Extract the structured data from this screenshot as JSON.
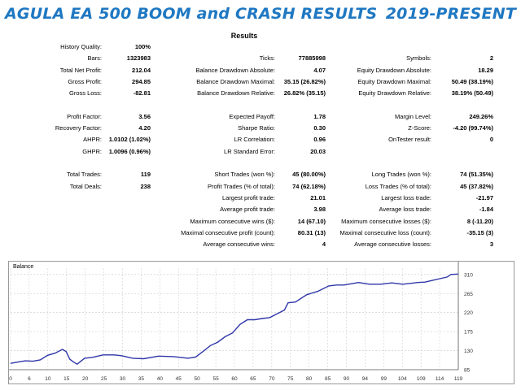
{
  "header": {
    "left_title": "AGULA EA 500 BOOM and CRASH RESULTS",
    "right_title": "2019-PRESENT"
  },
  "report": {
    "title": "Results",
    "rows": [
      {
        "label": "History Quality:",
        "value": "100%",
        "col": 0,
        "row": 0
      },
      {
        "label": "Bars:",
        "value": "1323983",
        "col": 0,
        "row": 1
      },
      {
        "label": "Ticks:",
        "value": "77885998",
        "col": 1,
        "row": 1
      },
      {
        "label": "Symbols:",
        "value": "2",
        "col": 2,
        "row": 1
      },
      {
        "label": "Total Net Profit:",
        "value": "212.04",
        "col": 0,
        "row": 2
      },
      {
        "label": "Balance Drawdown Absolute:",
        "value": "4.07",
        "col": 1,
        "row": 2
      },
      {
        "label": "Equity Drawdown Absolute:",
        "value": "18.29",
        "col": 2,
        "row": 2
      },
      {
        "label": "Gross Profit:",
        "value": "294.85",
        "col": 0,
        "row": 3
      },
      {
        "label": "Balance Drawdown Maximal:",
        "value": "35.15 (26.82%)",
        "col": 1,
        "row": 3
      },
      {
        "label": "Equity Drawdown Maximal:",
        "value": "50.49 (38.19%)",
        "col": 2,
        "row": 3
      },
      {
        "label": "Gross Loss:",
        "value": "-82.81",
        "col": 0,
        "row": 4
      },
      {
        "label": "Balance Drawdown Relative:",
        "value": "26.82% (35.15)",
        "col": 1,
        "row": 4
      },
      {
        "label": "Equity Drawdown Relative:",
        "value": "38.19% (50.49)",
        "col": 2,
        "row": 4
      },
      {
        "label": "Profit Factor:",
        "value": "3.56",
        "col": 0,
        "row": 6
      },
      {
        "label": "Expected Payoff:",
        "value": "1.78",
        "col": 1,
        "row": 6
      },
      {
        "label": "Margin Level:",
        "value": "249.26%",
        "col": 2,
        "row": 6
      },
      {
        "label": "Recovery Factor:",
        "value": "4.20",
        "col": 0,
        "row": 7
      },
      {
        "label": "Sharpe Ratio:",
        "value": "0.30",
        "col": 1,
        "row": 7
      },
      {
        "label": "Z-Score:",
        "value": "-4.20 (99.74%)",
        "col": 2,
        "row": 7
      },
      {
        "label": "AHPR:",
        "value": "1.0102 (1.02%)",
        "col": 0,
        "row": 8
      },
      {
        "label": "LR Correlation:",
        "value": "0.96",
        "col": 1,
        "row": 8
      },
      {
        "label": "OnTester result:",
        "value": "0",
        "col": 2,
        "row": 8
      },
      {
        "label": "GHPR:",
        "value": "1.0096 (0.96%)",
        "col": 0,
        "row": 9
      },
      {
        "label": "LR Standard Error:",
        "value": "20.03",
        "col": 1,
        "row": 9
      },
      {
        "label": "Total Trades:",
        "value": "119",
        "col": 0,
        "row": 11
      },
      {
        "label": "Short Trades (won %):",
        "value": "45 (80.00%)",
        "col": 1,
        "row": 11
      },
      {
        "label": "Long Trades (won %):",
        "value": "74 (51.35%)",
        "col": 2,
        "row": 11
      },
      {
        "label": "Total Deals:",
        "value": "238",
        "col": 0,
        "row": 12
      },
      {
        "label": "Profit Trades (% of total):",
        "value": "74 (62.18%)",
        "col": 1,
        "row": 12
      },
      {
        "label": "Loss Trades (% of total):",
        "value": "45 (37.82%)",
        "col": 2,
        "row": 12
      },
      {
        "label": "Largest profit trade:",
        "value": "21.01",
        "col": 1,
        "row": 13
      },
      {
        "label": "Largest loss trade:",
        "value": "-21.97",
        "col": 2,
        "row": 13
      },
      {
        "label": "Average profit trade:",
        "value": "3.98",
        "col": 1,
        "row": 14
      },
      {
        "label": "Average loss trade:",
        "value": "-1.84",
        "col": 2,
        "row": 14
      },
      {
        "label": "Maximum consecutive wins ($):",
        "value": "14 (67.10)",
        "col": 1,
        "row": 15
      },
      {
        "label": "Maximum consecutive losses ($):",
        "value": "8 (-11.20)",
        "col": 2,
        "row": 15
      },
      {
        "label": "Maximal consecutive profit (count):",
        "value": "80.31 (13)",
        "col": 1,
        "row": 16
      },
      {
        "label": "Maximal consecutive loss (count):",
        "value": "-35.15 (3)",
        "col": 2,
        "row": 16
      },
      {
        "label": "Average consecutive wins:",
        "value": "4",
        "col": 1,
        "row": 17
      },
      {
        "label": "Average consecutive losses:",
        "value": "3",
        "col": 2,
        "row": 17
      }
    ]
  },
  "chart_data": {
    "type": "line",
    "title": "Balance",
    "xlabel": "",
    "ylabel": "",
    "x_ticks": [
      "0",
      "6",
      "10",
      "15",
      "20",
      "25",
      "30",
      "35",
      "40",
      "45",
      "50",
      "55",
      "60",
      "65",
      "70",
      "75",
      "80",
      "85",
      "90",
      "94",
      "99",
      "104",
      "109",
      "114",
      "119"
    ],
    "y_ticks": [
      85,
      130,
      175,
      220,
      265,
      310
    ],
    "xlim": [
      0,
      121
    ],
    "ylim": [
      85,
      325
    ],
    "grid": true,
    "line_color": "#2f36a8",
    "series": [
      {
        "x": [
          0,
          2,
          4,
          6,
          8,
          10,
          12,
          14,
          15,
          16,
          17,
          18,
          20,
          22,
          25,
          28,
          30,
          33,
          36,
          40,
          44,
          48,
          50,
          52,
          54,
          56,
          58,
          60,
          62,
          64,
          66,
          68,
          70,
          72,
          74,
          75,
          77,
          80,
          83,
          86,
          88,
          90,
          92,
          94,
          97,
          100,
          103,
          106,
          108,
          110,
          112,
          114,
          116,
          118,
          119,
          121
        ],
        "y": [
          100,
          103,
          106,
          105,
          108,
          119,
          124,
          133,
          128,
          110,
          103,
          98,
          112,
          114,
          120,
          120,
          118,
          112,
          111,
          117,
          116,
          112,
          115,
          128,
          142,
          150,
          163,
          172,
          192,
          203,
          203,
          206,
          208,
          217,
          226,
          243,
          245,
          262,
          270,
          283,
          285,
          285,
          288,
          291,
          287,
          287,
          290,
          287,
          289,
          291,
          292,
          296,
          300,
          304,
          310,
          311
        ]
      }
    ]
  }
}
